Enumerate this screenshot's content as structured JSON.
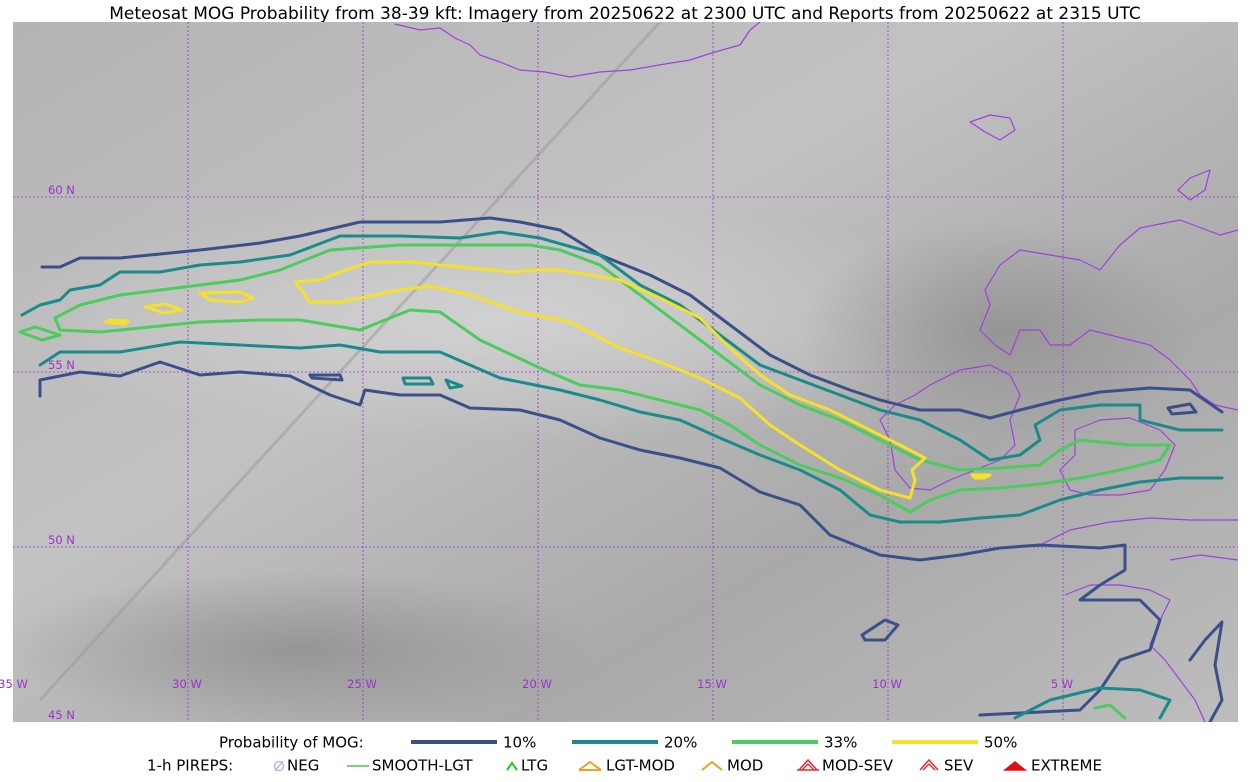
{
  "title": "Meteosat MOG Probability from 38-39 kft: Imagery from 20250622 at 2300 UTC and Reports from 20250622 at 2315 UTC",
  "latitude_labels": [
    "60 N",
    "55 N",
    "50 N",
    "45 N"
  ],
  "longitude_labels": [
    "35 W",
    "30 W",
    "25 W",
    "20 W",
    "15 W",
    "10 W",
    "5 W"
  ],
  "legend": {
    "probability": {
      "label": "Probability of MOG:",
      "entries": [
        {
          "label": "10%",
          "color": "#3b4f8a"
        },
        {
          "label": "20%",
          "color": "#1b8a8a"
        },
        {
          "label": "33%",
          "color": "#4ccb5f"
        },
        {
          "label": "50%",
          "color": "#f5e12a"
        }
      ]
    },
    "pireps": {
      "label": "1-h PIREPS:",
      "entries": [
        "NEG",
        "SMOOTH-LGT",
        "LTG",
        "LGT-MOD",
        "MOD",
        "MOD-SEV",
        "SEV",
        "EXTREME"
      ]
    }
  }
}
